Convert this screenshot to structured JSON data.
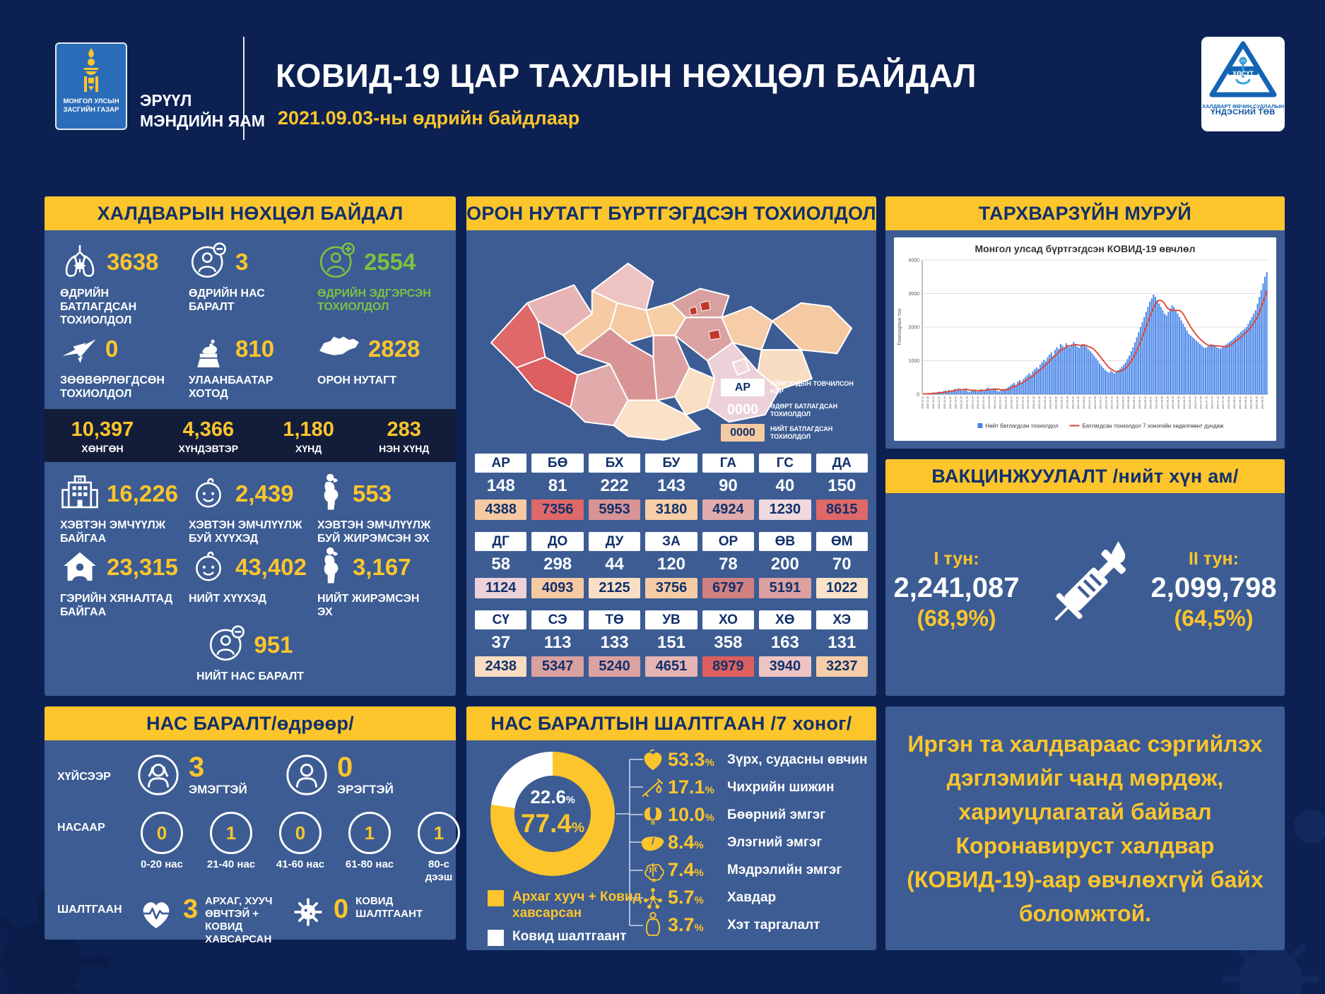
{
  "header": {
    "gov_logo_line1": "МОНГОЛ УЛСЫН",
    "gov_logo_line2": "ЗАСГИЙН ГАЗАР",
    "ministry_line1": "ЭРҮҮЛ",
    "ministry_line2": "МЭНДИЙН ЯАМ",
    "title": "КОВИД-19 ЦАР ТАХЛЫН НӨХЦӨЛ БАЙДАЛ",
    "subtitle": "2021.09.03-ны өдрийн байдлаар",
    "nccd_abbr": "ХӨСҮТ",
    "nccd_line1": "ХАЛДВАРТ ӨВЧИН СУДЛАЛЫН",
    "nccd_line2": "ҮНДЭСНИЙ ТӨВ"
  },
  "colors": {
    "yellow": "#fdc52c",
    "green": "#7cc142",
    "white": "#ffffff",
    "panel_blue": "#3c5c93",
    "navy_text": "#11306b",
    "bar_blue": "#4a86e8",
    "line_red": "#e0442c"
  },
  "infection_panel": {
    "title": "ХАЛДВАРЫН НӨХЦӨЛ БАЙДАЛ",
    "stats": [
      {
        "icon": "lungs-virus-icon",
        "value": "3638",
        "label": "ӨДРИЙН БАТЛАГДСАН ТОХИОЛДОЛ",
        "color": "yellow"
      },
      {
        "icon": "person-minus-icon",
        "value": "3",
        "label": "ӨДРИЙН НАС БАРАЛТ",
        "color": "yellow"
      },
      {
        "icon": "person-plus-icon",
        "value": "2554",
        "label": "ӨДРИЙН ЭДГЭРСЭН ТОХИОЛДОЛ",
        "color": "green"
      },
      {
        "icon": "airplane-icon",
        "value": "0",
        "label": "ЗӨӨВӨРЛӨГДСӨН ТОХИОЛДОЛ",
        "color": "yellow"
      },
      {
        "icon": "statue-icon",
        "value": "810",
        "label": "УЛААНБААТАР ХОТОД",
        "color": "yellow"
      },
      {
        "icon": "mongolia-icon",
        "value": "2828",
        "label": "ОРОН НУТАГТ",
        "color": "yellow"
      }
    ],
    "severity": [
      {
        "value": "10,397",
        "label": "ХӨНГӨН"
      },
      {
        "value": "4,366",
        "label": "ХҮНДЭВТЭР"
      },
      {
        "value": "1,180",
        "label": "ХҮНД"
      },
      {
        "value": "283",
        "label": "НЭН ХҮНД"
      }
    ],
    "care": [
      {
        "icon": "hospital-icon",
        "value": "16,226",
        "label": "ХЭВТЭН ЭМЧҮҮЛЖ БАЙГАА"
      },
      {
        "icon": "baby-icon",
        "value": "2,439",
        "label": "ХЭВТЭН ЭМЧЛҮҮЛЖ БУЙ ХҮҮХЭД"
      },
      {
        "icon": "pregnant-icon",
        "value": "553",
        "label": "ХЭВТЭН ЭМЧЛҮҮЛЖ БУЙ ЖИРЭМСЭН ЭХ"
      },
      {
        "icon": "home-icon",
        "value": "23,315",
        "label": "ГЭРИЙН ХЯНАЛТАД БАЙГАА"
      },
      {
        "icon": "baby-icon",
        "value": "43,402",
        "label": "НИЙТ ХҮҮХЭД"
      },
      {
        "icon": "pregnant-icon",
        "value": "3,167",
        "label": "НИЙТ ЖИРЭМСЭН ЭХ"
      }
    ],
    "total_death": {
      "icon": "person-minus-icon",
      "value": "951",
      "label": "НИЙТ НАС БАРАЛТ"
    }
  },
  "region_panel": {
    "title": "ОРОН НУТАГТ БҮРТГЭГДСЭН ТОХИОЛДОЛ",
    "city_spot_color": "#c0392b",
    "legend": [
      {
        "sample": "АР",
        "style": "code",
        "label": "АЙМГУУДЫН ТОВЧИЛСОН НЭР"
      },
      {
        "sample": "0000",
        "style": "plain",
        "label": "ӨДӨРТ БАТЛАГДСАН ТОХИОЛДОЛ"
      },
      {
        "sample": "0000",
        "style": "total",
        "swatch_color": "#f5c9a2",
        "label": "НИЙТ БАТЛАГДСАН ТОХИОЛДОЛ"
      }
    ],
    "rows": [
      [
        {
          "code": "АР",
          "daily": "148",
          "total": "4388",
          "color": "#f5c9a2"
        },
        {
          "code": "БӨ",
          "daily": "81",
          "total": "7356",
          "color": "#df6868"
        },
        {
          "code": "БХ",
          "daily": "222",
          "total": "5953",
          "color": "#d89494"
        },
        {
          "code": "БУ",
          "daily": "143",
          "total": "3180",
          "color": "#f7cfa6"
        },
        {
          "code": "ГА",
          "daily": "90",
          "total": "4924",
          "color": "#e2abab"
        },
        {
          "code": "ГС",
          "daily": "40",
          "total": "1230",
          "color": "#efd9de"
        },
        {
          "code": "ДА",
          "daily": "150",
          "total": "8615",
          "color": "#df6868"
        }
      ],
      [
        {
          "code": "ДГ",
          "daily": "58",
          "total": "1124",
          "color": "#ecd2d8"
        },
        {
          "code": "ДО",
          "daily": "298",
          "total": "4093",
          "color": "#f5c9a2"
        },
        {
          "code": "ДУ",
          "daily": "44",
          "total": "2125",
          "color": "#f9dfc4"
        },
        {
          "code": "ЗА",
          "daily": "120",
          "total": "3756",
          "color": "#f6cba4"
        },
        {
          "code": "ОР",
          "daily": "78",
          "total": "6797",
          "color": "#d08080"
        },
        {
          "code": "ӨВ",
          "daily": "200",
          "total": "5191",
          "color": "#dca0a0"
        },
        {
          "code": "ӨМ",
          "daily": "70",
          "total": "1022",
          "color": "#f9e2c8"
        }
      ],
      [
        {
          "code": "СҮ",
          "daily": "37",
          "total": "2438",
          "color": "#f8ddc2"
        },
        {
          "code": "СЭ",
          "daily": "113",
          "total": "5347",
          "color": "#d9a0a0"
        },
        {
          "code": "ТӨ",
          "daily": "133",
          "total": "5240",
          "color": "#dba2a2"
        },
        {
          "code": "УВ",
          "daily": "151",
          "total": "4651",
          "color": "#e6b4b4"
        },
        {
          "code": "ХО",
          "daily": "358",
          "total": "8979",
          "color": "#dd5f5f"
        },
        {
          "code": "ХӨ",
          "daily": "163",
          "total": "3940",
          "color": "#eec3c3"
        },
        {
          "code": "ХЭ",
          "daily": "131",
          "total": "3237",
          "color": "#f6cda8"
        }
      ]
    ]
  },
  "curve_panel": {
    "title": "ТАРХВАРЗҮЙН МУРУЙ"
  },
  "chart_data": [
    {
      "type": "bar",
      "title": "Монгол улсад бүртгэгдсэн КОВИД-19 өвчлөл",
      "xlabel": "",
      "ylabel": "Тохиолдлын тоо",
      "ylim": [
        0,
        4000
      ],
      "yticks": [
        0,
        1000,
        2000,
        3000,
        4000
      ],
      "x_range": [
        "2020.11.11",
        "2021.09.03"
      ],
      "grid": true,
      "legend_position": "bottom",
      "estimated": true,
      "series": [
        {
          "name": "Нийт батлагдсан тохиолдол",
          "type": "bar",
          "color": "#4a86e8",
          "values": [
            12,
            8,
            21,
            35,
            18,
            42,
            55,
            30,
            68,
            75,
            50,
            90,
            110,
            85,
            130,
            95,
            120,
            160,
            140,
            180,
            150,
            100,
            130,
            170,
            90,
            60,
            110,
            140,
            120,
            80,
            100,
            150,
            130,
            90,
            170,
            200,
            160,
            120,
            180,
            140,
            100,
            80,
            120,
            160,
            140,
            180,
            220,
            260,
            300,
            340,
            280,
            380,
            420,
            360,
            450,
            500,
            560,
            620,
            580,
            680,
            740,
            800,
            760,
            880,
            950,
            1020,
            980,
            1100,
            1180,
            1250,
            1150,
            1320,
            1400,
            1350,
            1500,
            1450,
            1380,
            1520,
            1460,
            1400,
            1480,
            1560,
            1500,
            1420,
            1380,
            1440,
            1500,
            1460,
            1400,
            1340,
            1280,
            1220,
            1150,
            1080,
            1000,
            920,
            850,
            780,
            720,
            680,
            640,
            700,
            660,
            620,
            680,
            720,
            760,
            820,
            880,
            950,
            1050,
            1150,
            1280,
            1400,
            1550,
            1700,
            1850,
            2000,
            2150,
            2300,
            2450,
            2600,
            2750,
            2850,
            2971,
            2900,
            2800,
            2700,
            2600,
            2500,
            2400,
            2350,
            2450,
            2550,
            2650,
            2600,
            2500,
            2400,
            2300,
            2200,
            2100,
            2000,
            1900,
            1800,
            1750,
            1700,
            1650,
            1600,
            1550,
            1500,
            1450,
            1400,
            1380,
            1420,
            1460,
            1500,
            1480,
            1440,
            1400,
            1380,
            1360,
            1400,
            1440,
            1480,
            1520,
            1560,
            1600,
            1650,
            1700,
            1750,
            1800,
            1850,
            1900,
            1950,
            2000,
            2100,
            2200,
            2300,
            2400,
            2500,
            2700,
            2900,
            3100,
            3300,
            3500,
            3638
          ]
        },
        {
          "name": "Батлагдсан тохиолдол 7 хоногийн хөдөлгөөнт дундаж",
          "type": "line",
          "color": "#e0442c",
          "derived": "7-day moving average of bar series"
        }
      ]
    },
    {
      "type": "pie",
      "title": "НАС БАРАЛТЫН ШАЛТГААН /7 хоног/",
      "values": [
        77.4,
        22.6
      ],
      "labels": [
        "Архаг хууч + Ковид хавсарсан",
        "Ковид шалтгаант"
      ],
      "colors": [
        "#fdc52c",
        "#ffffff"
      ]
    }
  ],
  "vaccine_panel": {
    "title": "ВАКЦИНЖУУЛАЛТ /нийт хүн ам/",
    "dose1": {
      "label": "I тун:",
      "value": "2,241,087",
      "pct": "(68,9%)"
    },
    "dose2": {
      "label": "II тун:",
      "value": "2,099,798",
      "pct": "(64,5%)"
    }
  },
  "deaths_panel": {
    "title": "НАС БАРАЛТ/өдрөөр/",
    "gender_row_label": "ХҮЙСЭЭР",
    "genders": [
      {
        "icon": "female-icon",
        "value": "3",
        "label": "ЭМЭГТЭЙ"
      },
      {
        "icon": "male-icon",
        "value": "0",
        "label": "ЭРЭГТЭЙ"
      }
    ],
    "age_row_label": "НАСААР",
    "ages": [
      {
        "value": "0",
        "label": "0-20 нас"
      },
      {
        "value": "1",
        "label": "21-40 нас"
      },
      {
        "value": "0",
        "label": "41-60 нас"
      },
      {
        "value": "1",
        "label": "61-80 нас"
      },
      {
        "value": "1",
        "label": "80-с дээш"
      }
    ],
    "cause_row_label": "ШАЛТГААН",
    "causes": [
      {
        "icon": "heart-pulse-icon",
        "value": "3",
        "label": "АРХАГ, ХУУЧ ӨВЧТЭЙ + КОВИД ХАВСАРСАН"
      },
      {
        "icon": "virus-icon",
        "value": "0",
        "label": "КОВИД ШАЛТГААНТ"
      }
    ]
  },
  "causes_panel": {
    "title": "НАС БАРАЛТЫН ШАЛТГААН /7 хоног/",
    "donut": {
      "covid_only_pct": "22.6",
      "chronic_pct": "77.4",
      "percent_sign": "%",
      "chronic_color": "#fdc52c",
      "covid_only_color": "#ffffff"
    },
    "legend": [
      {
        "color": "#fdc52c",
        "label": "Архаг хууч + Ковид хавсарсан",
        "text_color": "#fdc52c"
      },
      {
        "color": "#ffffff",
        "label": "Ковид шалтгаант",
        "text_color": "#ffffff"
      }
    ],
    "percent_sign": "%",
    "items": [
      {
        "icon": "heart-icon",
        "pct": "53.3",
        "label": "Зүрх, судасны өвчин"
      },
      {
        "icon": "diabetes-icon",
        "pct": "17.1",
        "label": "Чихрийн шижин"
      },
      {
        "icon": "kidney-icon",
        "pct": "10.0",
        "label": "Бөөрний эмгэг"
      },
      {
        "icon": "liver-icon",
        "pct": "8.4",
        "label": "Элэгний эмгэг"
      },
      {
        "icon": "brain-icon",
        "pct": "7.4",
        "label": "Мэдрэлийн эмгэг"
      },
      {
        "icon": "cancer-icon",
        "pct": "5.7",
        "label": "Хавдар"
      },
      {
        "icon": "obesity-icon",
        "pct": "3.7",
        "label": "Хэт таргалалт"
      }
    ]
  },
  "message_panel": {
    "text": "Иргэн та халдвараас сэргийлэх дэглэмийг чанд мөрдөж, хариуцлагатай байвал Коронавируст халдвар (КОВИД-19)-аар өвчлөхгүй байх боломжтой."
  }
}
